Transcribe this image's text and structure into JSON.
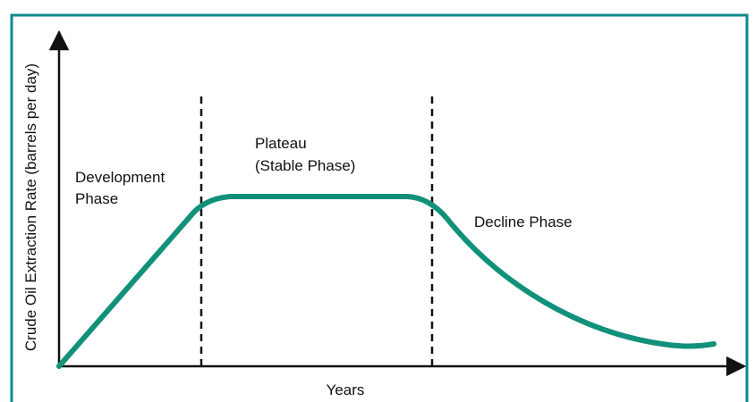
{
  "x_axis_label": "Years",
  "y_axis_label": "Crude Oil Extraction Rate (barrels per day)",
  "phases": [
    {
      "lines": [
        "Development",
        "Phase"
      ]
    },
    {
      "lines": [
        "Plateau",
        "(Stable Phase)"
      ]
    },
    {
      "lines": [
        "Decline Phase"
      ]
    }
  ]
}
